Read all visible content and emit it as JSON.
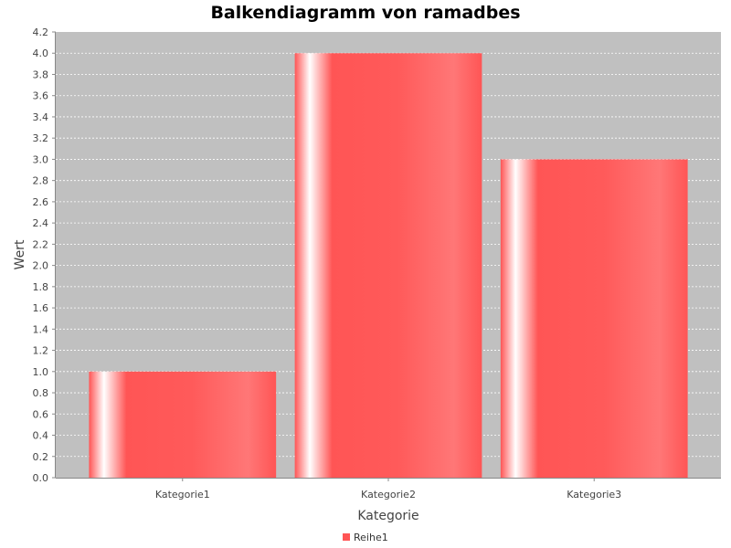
{
  "chart_data": {
    "type": "bar",
    "title": "Balkendiagramm von ramadbes",
    "xlabel": "Kategorie",
    "ylabel": "Wert",
    "categories": [
      "Kategorie1",
      "Kategorie2",
      "Kategorie3"
    ],
    "series": [
      {
        "name": "Reihe1",
        "values": [
          1.0,
          4.0,
          3.0
        ]
      }
    ],
    "ylim": [
      0,
      4.2
    ],
    "yticks": [
      "0.0",
      "0.2",
      "0.4",
      "0.6",
      "0.8",
      "1.0",
      "1.2",
      "1.4",
      "1.6",
      "1.8",
      "2.0",
      "2.2",
      "2.4",
      "2.6",
      "2.8",
      "3.0",
      "3.2",
      "3.4",
      "3.6",
      "3.8",
      "4.0",
      "4.2"
    ],
    "grid": true,
    "legend_position": "bottom-center",
    "colors": {
      "bar": "#ff5555",
      "plot_background": "#c0c0c0",
      "gridline": "#ffffff"
    }
  }
}
